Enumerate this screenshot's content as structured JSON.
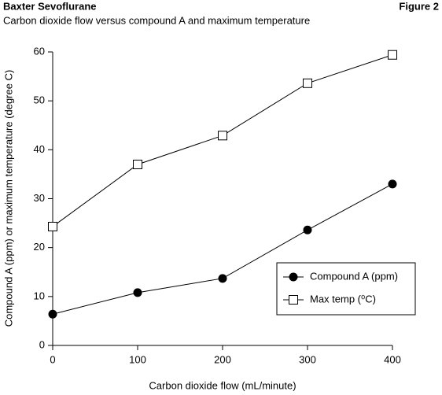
{
  "chart_data": {
    "type": "line",
    "title": "Baxter Sevoflurane",
    "figure_label": "Figure 2",
    "subtitle": "Carbon dioxide flow versus compound A and maximum temperature",
    "x_label": "Carbon dioxide flow (mL/minute)",
    "y_label": "Compound A (ppm) or maximum temperature (degree C)",
    "x": [
      0,
      100,
      200,
      300,
      400
    ],
    "series": [
      {
        "name": "Compound A (ppm)",
        "color": "#000000",
        "marker": "circle",
        "values": [
          6.4,
          10.8,
          13.7,
          23.6,
          33.0
        ]
      },
      {
        "name": "Max temp (⁰C)",
        "color": "#000000",
        "marker": "square",
        "values": [
          24.3,
          37.0,
          42.9,
          53.6,
          59.4
        ]
      }
    ],
    "xlim": [
      0,
      400
    ],
    "xticks": [
      0,
      100,
      200,
      300,
      400
    ],
    "ylim": [
      0,
      60
    ],
    "yticks": [
      0,
      10,
      20,
      30,
      40,
      50,
      60
    ],
    "grid": false,
    "legend": "lower right"
  }
}
